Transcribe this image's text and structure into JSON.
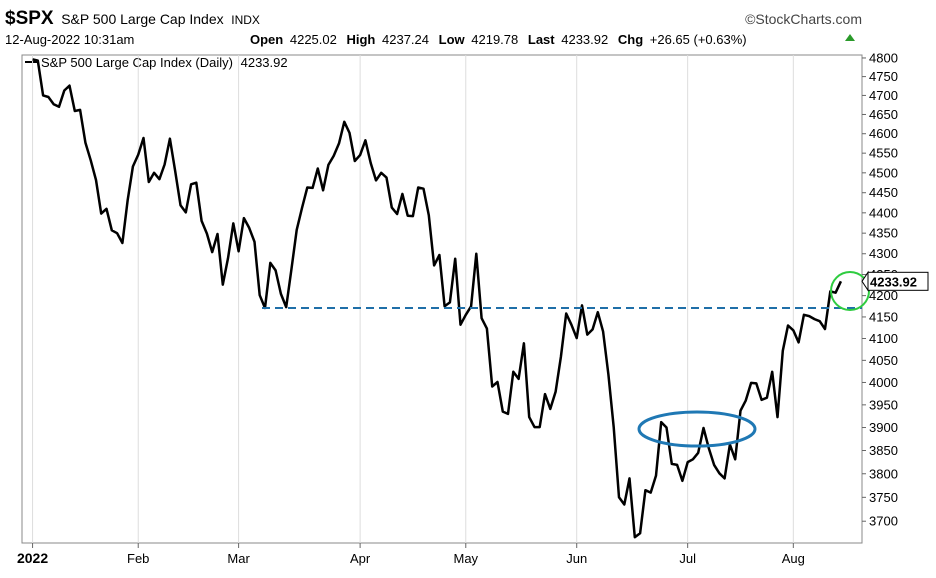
{
  "header": {
    "symbol": "$SPX",
    "name": "S&P 500 Large Cap Index",
    "exchange": "INDX",
    "source": "©StockCharts.com",
    "datetime": "12-Aug-2022 10:31am",
    "open_label": "Open",
    "open": 4225.02,
    "high_label": "High",
    "high": 4237.24,
    "low_label": "Low",
    "low": 4219.78,
    "last_label": "Last",
    "chg_label": "Chg",
    "chg": "+26.65 (+0.63%)"
  },
  "chart_data": {
    "type": "line",
    "log_scale": true,
    "grid": true,
    "series": [
      {
        "name": "S&P 500 Large Cap Index (Daily)",
        "color": "#000000",
        "values": [
          4796,
          4793,
          4700,
          4696,
          4677,
          4670,
          4713,
          4726,
          4659,
          4662,
          4577,
          4532,
          4482,
          4398,
          4410,
          4357,
          4350,
          4326,
          4432,
          4516,
          4546,
          4589,
          4477,
          4500,
          4484,
          4521,
          4587,
          4504,
          4419,
          4401,
          4471,
          4475,
          4380,
          4349,
          4304,
          4348,
          4226,
          4289,
          4374,
          4306,
          4387,
          4363,
          4329,
          4201,
          4171,
          4278,
          4260,
          4204,
          4173,
          4262,
          4358,
          4412,
          4463,
          4462,
          4511,
          4456,
          4520,
          4543,
          4575,
          4631,
          4602,
          4530,
          4545,
          4583,
          4525,
          4481,
          4500,
          4488,
          4413,
          4397,
          4447,
          4393,
          4392,
          4463,
          4460,
          4394,
          4272,
          4297,
          4175,
          4184,
          4288,
          4132,
          4155,
          4175,
          4300,
          4147,
          4123,
          3991,
          4001,
          3935,
          3930,
          4024,
          4008,
          4089,
          3923,
          3901,
          3901,
          3974,
          3941,
          3979,
          4058,
          4158,
          4132,
          4101,
          4177,
          4109,
          4121,
          4161,
          4116,
          4018,
          3901,
          3750,
          3735,
          3790,
          3667,
          3675,
          3765,
          3760,
          3796,
          3912,
          3900,
          3821,
          3819,
          3785,
          3825,
          3831,
          3845,
          3899,
          3855,
          3819,
          3801,
          3790,
          3863,
          3831,
          3937,
          3960,
          3999,
          3998,
          3961,
          3966,
          4024,
          3923,
          4072,
          4130,
          4119,
          4091,
          4155,
          4152,
          4145,
          4140,
          4122,
          4210,
          4207,
          4233.92
        ]
      }
    ],
    "xlim": [
      -2,
      157
    ],
    "xticks": [
      {
        "value": 0,
        "label": "2022"
      },
      {
        "value": 20,
        "label": "Feb"
      },
      {
        "value": 39,
        "label": "Mar"
      },
      {
        "value": 62,
        "label": "Apr"
      },
      {
        "value": 82,
        "label": "May"
      },
      {
        "value": 103,
        "label": "Jun"
      },
      {
        "value": 124,
        "label": "Jul"
      },
      {
        "value": 144,
        "label": "Aug"
      }
    ],
    "ylim": [
      3655,
      4808
    ],
    "yticks": [
      4800,
      4750,
      4700,
      4650,
      4600,
      4550,
      4500,
      4450,
      4400,
      4350,
      4300,
      4250,
      4200,
      4150,
      4100,
      4050,
      4000,
      3950,
      3900,
      3850,
      3800,
      3750,
      3700
    ]
  }
}
